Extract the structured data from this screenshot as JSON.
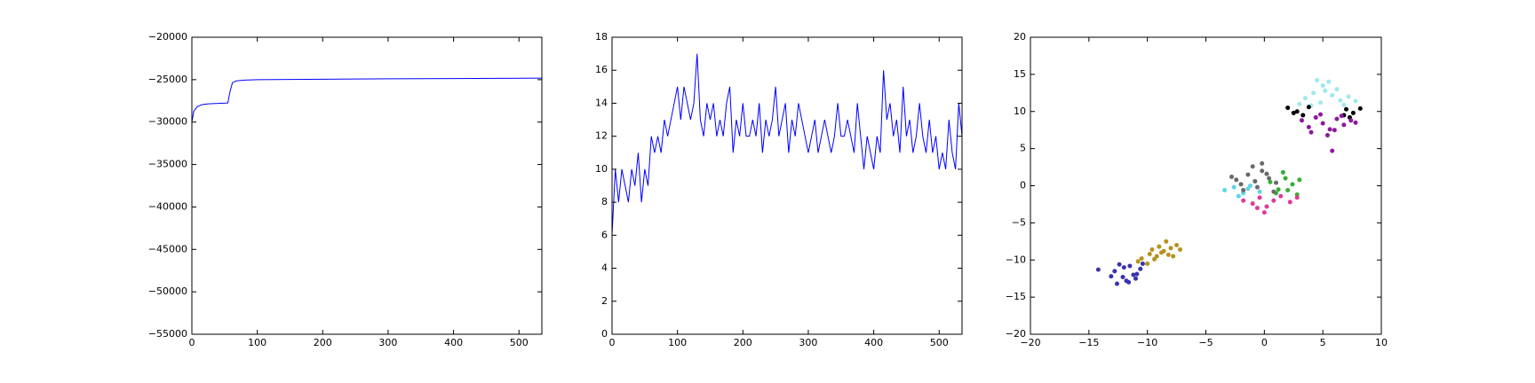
{
  "chart_data": [
    {
      "type": "line",
      "color": "#0000ff",
      "x": [
        0,
        3,
        8,
        15,
        25,
        40,
        55,
        58,
        62,
        68,
        80,
        100,
        150,
        200,
        300,
        400,
        535
      ],
      "values": [
        -30000,
        -28700,
        -28200,
        -27950,
        -27850,
        -27800,
        -27750,
        -26500,
        -25350,
        -25150,
        -25050,
        -25000,
        -24980,
        -24950,
        -24900,
        -24870,
        -24820
      ],
      "xlim": [
        0,
        535
      ],
      "xticks": [
        0,
        100,
        200,
        300,
        400,
        500
      ],
      "ylim": [
        -55000,
        -20000
      ],
      "yticks": [
        {
          "value": -55000,
          "label": "−55000"
        },
        {
          "value": -50000,
          "label": "−50000"
        },
        {
          "value": -45000,
          "label": "−45000"
        },
        {
          "value": -40000,
          "label": "−40000"
        },
        {
          "value": -35000,
          "label": "−35000"
        },
        {
          "value": -30000,
          "label": "−30000"
        },
        {
          "value": -25000,
          "label": "−25000"
        },
        {
          "value": -20000,
          "label": "−20000"
        }
      ]
    },
    {
      "type": "line",
      "color": "#0000ff",
      "x": [
        0,
        5,
        10,
        15,
        20,
        25,
        30,
        35,
        40,
        45,
        50,
        55,
        60,
        65,
        70,
        75,
        80,
        85,
        90,
        95,
        100,
        105,
        110,
        115,
        120,
        125,
        130,
        135,
        140,
        145,
        150,
        155,
        160,
        165,
        170,
        175,
        180,
        185,
        190,
        195,
        200,
        205,
        210,
        215,
        220,
        225,
        230,
        235,
        240,
        245,
        250,
        255,
        260,
        265,
        270,
        275,
        280,
        285,
        290,
        295,
        300,
        305,
        310,
        315,
        320,
        325,
        330,
        335,
        340,
        345,
        350,
        355,
        360,
        365,
        370,
        375,
        380,
        385,
        390,
        395,
        400,
        405,
        410,
        415,
        420,
        425,
        430,
        435,
        440,
        445,
        450,
        455,
        460,
        465,
        470,
        475,
        480,
        485,
        490,
        495,
        500,
        505,
        510,
        515,
        520,
        525,
        530,
        535
      ],
      "values": [
        6,
        10,
        8,
        10,
        9,
        8,
        10,
        9,
        11,
        8,
        10,
        9,
        12,
        11,
        12,
        11,
        13,
        12,
        13,
        14,
        15,
        13,
        15,
        14,
        13,
        14,
        17,
        13,
        12,
        14,
        13,
        14,
        12,
        13,
        12,
        14,
        15,
        11,
        13,
        12,
        14,
        12,
        12,
        13,
        12,
        14,
        11,
        13,
        12,
        13,
        15,
        12,
        13,
        14,
        11,
        13,
        12,
        14,
        13,
        12,
        11,
        12,
        13,
        11,
        12,
        13,
        12,
        11,
        12,
        14,
        12,
        12,
        13,
        12,
        11,
        14,
        12,
        10,
        12,
        11,
        10,
        12,
        11,
        16,
        13,
        14,
        12,
        13,
        11,
        15,
        12,
        13,
        11,
        12,
        14,
        12,
        11,
        13,
        11,
        12,
        10,
        11,
        10,
        13,
        11,
        10,
        14,
        12
      ],
      "xlim": [
        0,
        535
      ],
      "xticks": [
        0,
        100,
        200,
        300,
        400,
        500
      ],
      "ylim": [
        0,
        18
      ],
      "yticks": [
        0,
        2,
        4,
        6,
        8,
        10,
        12,
        14,
        16,
        18
      ]
    },
    {
      "type": "scatter",
      "series": [
        {
          "color": "#3a33b0",
          "x": [
            -12.8,
            -12.1,
            -11.5,
            -10.9,
            -11.8,
            -12.4,
            -10.6,
            -11.2,
            -13.1,
            -12.0,
            -10.4,
            -11.6,
            -14.2,
            -12.6,
            -11.0
          ],
          "values": [
            -11.5,
            -12.3,
            -10.8,
            -11.9,
            -12.8,
            -10.6,
            -11.2,
            -12.0,
            -12.2,
            -11.0,
            -10.5,
            -13.0,
            -11.3,
            -13.2,
            -12.5
          ]
        },
        {
          "color": "#b8921e",
          "x": [
            -10.5,
            -9.8,
            -9.2,
            -8.6,
            -8.0,
            -7.5,
            -10.0,
            -9.4,
            -8.8,
            -8.2,
            -7.2,
            -10.8,
            -9.0,
            -8.4,
            -9.6,
            -7.8
          ],
          "values": [
            -9.8,
            -9.2,
            -9.5,
            -8.8,
            -8.4,
            -8.0,
            -10.5,
            -9.9,
            -9.0,
            -9.3,
            -8.6,
            -10.2,
            -8.2,
            -7.5,
            -8.6,
            -9.5
          ]
        },
        {
          "color": "#9ee8ee",
          "x": [
            3.5,
            4.2,
            5.0,
            5.8,
            6.5,
            7.2,
            4.0,
            4.8,
            5.5,
            6.2,
            3.0,
            7.8,
            5.2,
            4.5,
            6.8
          ],
          "values": [
            11.8,
            12.5,
            13.5,
            12.2,
            11.5,
            12.0,
            10.8,
            11.2,
            14.0,
            13.0,
            11.0,
            11.4,
            12.8,
            14.2,
            10.9
          ]
        },
        {
          "color": "#000000",
          "x": [
            2.0,
            2.8,
            3.3,
            7.0,
            7.6,
            8.2,
            2.5,
            6.8,
            3.8,
            7.3
          ],
          "values": [
            10.5,
            10.0,
            9.5,
            10.3,
            9.8,
            10.4,
            9.8,
            9.5,
            10.6,
            9.2
          ]
        },
        {
          "color": "#8b1a9b",
          "x": [
            3.2,
            3.8,
            4.4,
            5.0,
            5.6,
            6.2,
            6.8,
            7.4,
            4.0,
            4.8,
            5.4,
            6.0,
            6.6,
            5.8,
            7.8
          ],
          "values": [
            8.8,
            7.9,
            9.2,
            8.4,
            7.6,
            9.0,
            8.2,
            8.8,
            7.2,
            9.6,
            6.8,
            7.5,
            9.4,
            4.7,
            8.5
          ]
        },
        {
          "color": "#33b033",
          "x": [
            0.5,
            1.2,
            1.8,
            2.4,
            3.0,
            1.0,
            2.0,
            2.8,
            0.2,
            1.6
          ],
          "values": [
            0.5,
            -0.5,
            1.0,
            0.2,
            0.8,
            -1.0,
            -0.6,
            -1.2,
            1.6,
            1.8
          ]
        },
        {
          "color": "#e0399a",
          "x": [
            -1.8,
            -1.0,
            -0.4,
            0.2,
            0.8,
            1.4,
            2.2,
            -0.6,
            0.0,
            2.8
          ],
          "values": [
            -2.0,
            -2.4,
            -1.6,
            -2.8,
            -2.0,
            -1.4,
            -2.2,
            -3.0,
            -3.6,
            -1.6
          ]
        },
        {
          "color": "#5fd3e6",
          "x": [
            -3.4,
            -2.6,
            -1.8,
            -1.2,
            -0.4,
            -2.2,
            -1.4,
            -0.8
          ],
          "values": [
            -0.6,
            -0.2,
            -1.0,
            0.0,
            -0.8,
            -1.4,
            -0.4,
            0.6
          ]
        },
        {
          "color": "#6a6a6a",
          "x": [
            -2.8,
            -2.0,
            -1.4,
            -0.8,
            -0.2,
            0.4,
            1.0,
            -1.8,
            -0.6,
            0.2,
            -1.0,
            0.8,
            -2.4,
            -0.2
          ],
          "values": [
            1.2,
            0.2,
            1.5,
            0.6,
            2.0,
            1.0,
            0.4,
            -0.6,
            -0.2,
            1.6,
            2.6,
            -0.8,
            0.8,
            3.0
          ]
        }
      ],
      "xlim": [
        -20,
        10
      ],
      "xticks": [
        {
          "value": -20,
          "label": "−20"
        },
        {
          "value": -15,
          "label": "−15"
        },
        {
          "value": -10,
          "label": "−10"
        },
        {
          "value": -5,
          "label": "−5"
        },
        0,
        5,
        10
      ],
      "ylim": [
        -20,
        20
      ],
      "yticks": [
        {
          "value": -20,
          "label": "−20"
        },
        {
          "value": -15,
          "label": "−15"
        },
        {
          "value": -10,
          "label": "−10"
        },
        {
          "value": -5,
          "label": "−5"
        },
        0,
        5,
        10,
        15,
        20
      ]
    }
  ]
}
